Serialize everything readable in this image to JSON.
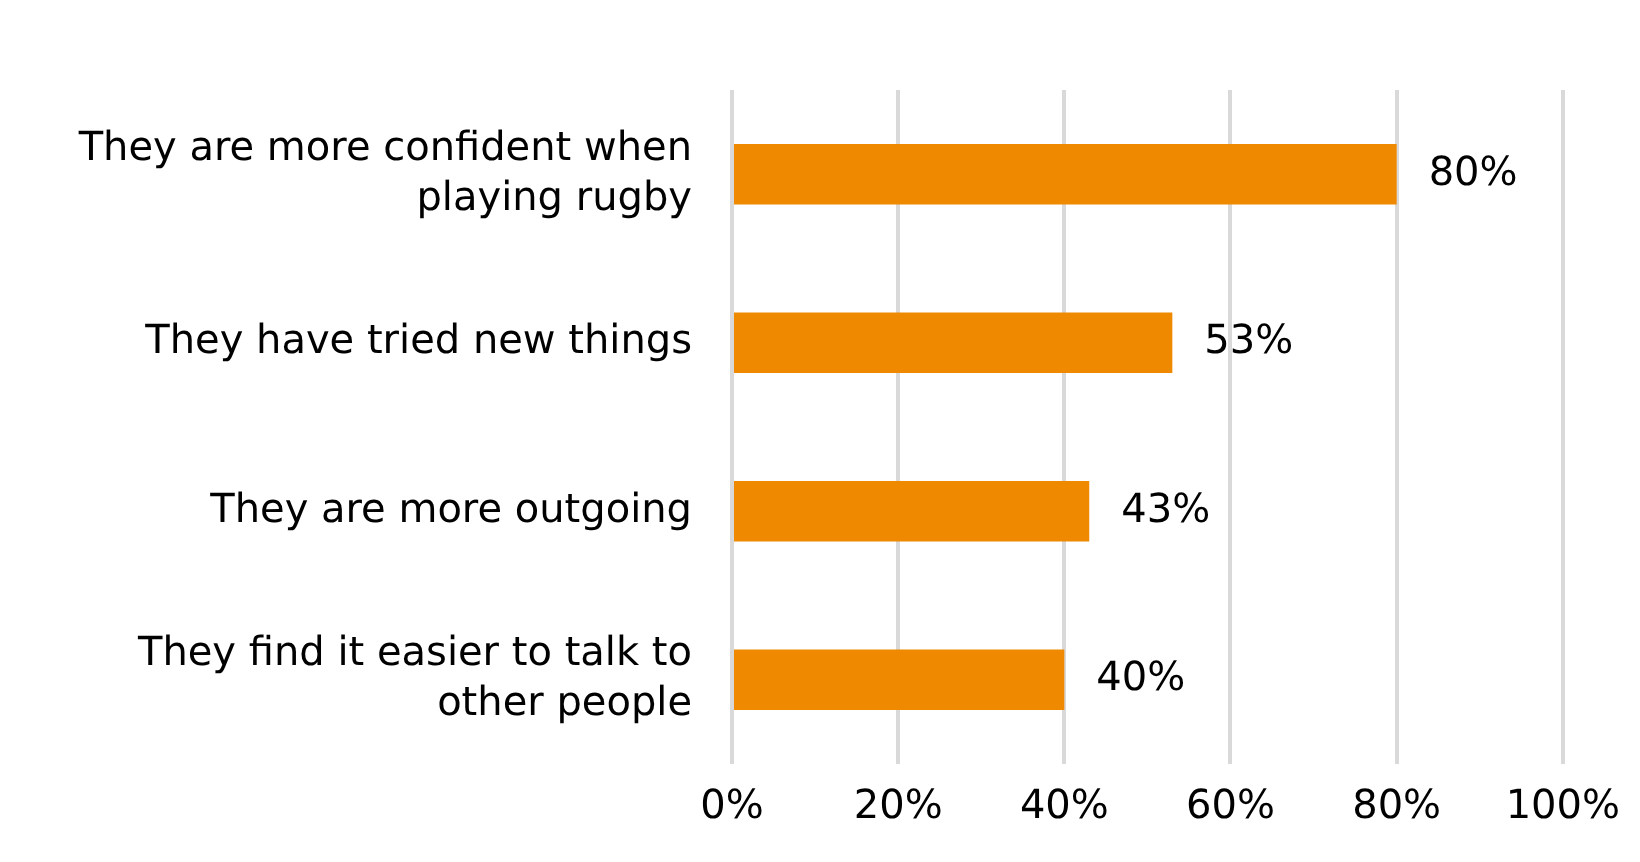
{
  "chart_data": {
    "type": "bar",
    "orientation": "horizontal",
    "categories": [
      "They are more confident when playing rugby",
      "They have tried new things",
      "They are more outgoing",
      "They find it easier to talk to other people"
    ],
    "values": [
      80,
      53,
      43,
      40
    ],
    "color": "#ef8900",
    "value_labels": [
      "80%",
      "53%",
      "43%",
      "40%"
    ],
    "xlim": [
      0,
      100
    ],
    "xticks": [
      {
        "value": 0,
        "label": "0%"
      },
      {
        "value": 20,
        "label": "20%"
      },
      {
        "value": 40,
        "label": "40%"
      },
      {
        "value": 60,
        "label": "60%"
      },
      {
        "value": 80,
        "label": "80%"
      },
      {
        "value": 100,
        "label": "100%"
      }
    ],
    "grid": "x",
    "legend": false
  }
}
